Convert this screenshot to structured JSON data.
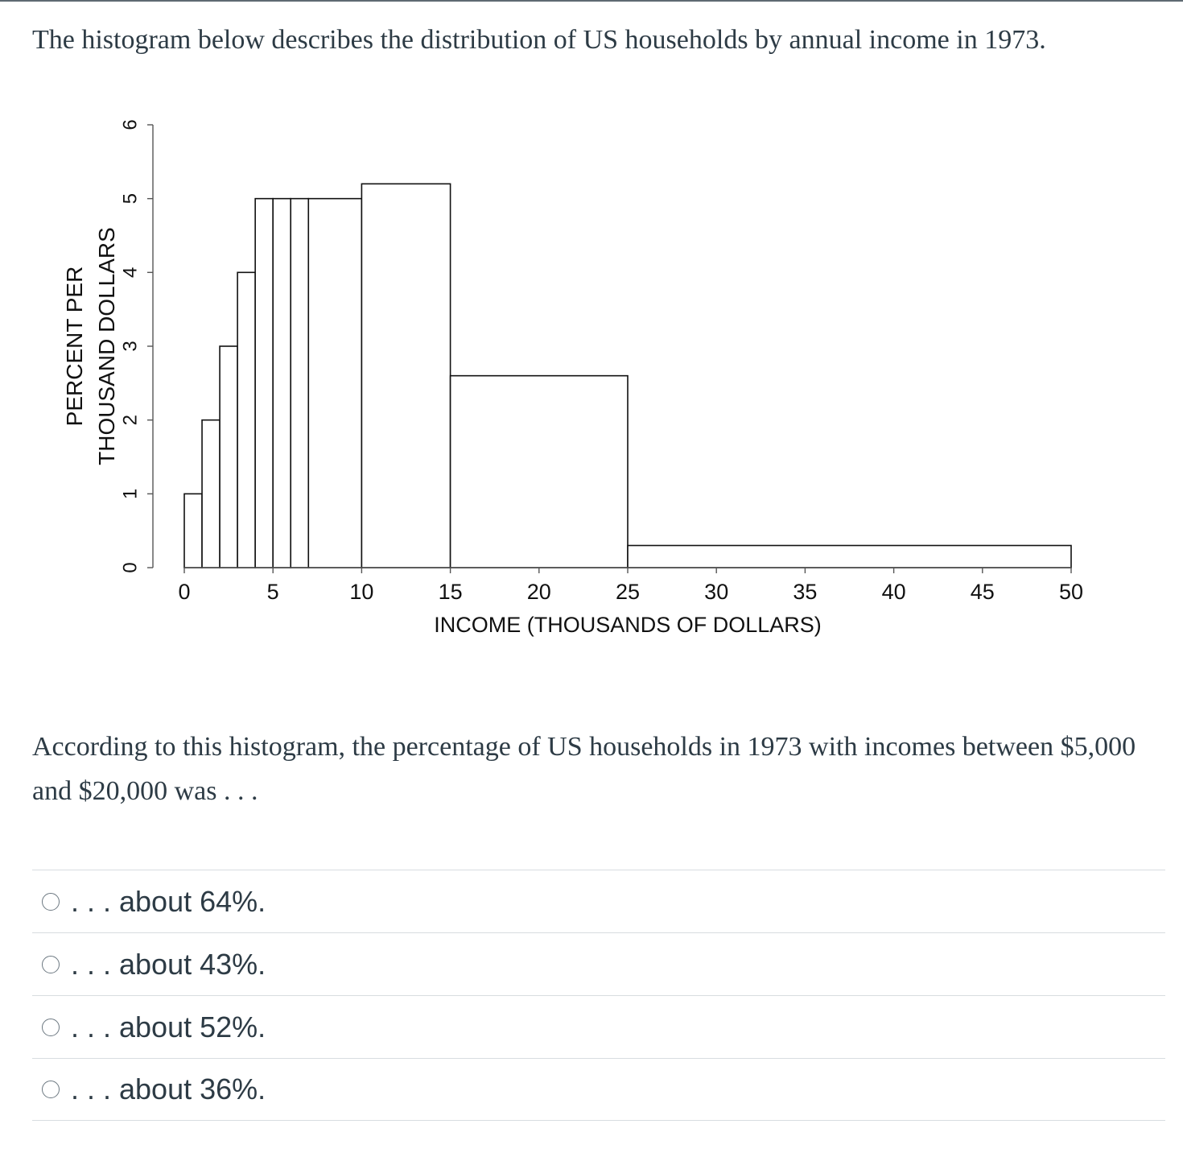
{
  "question": {
    "intro": "The histogram below describes the distribution of US households by annual income in 1973.",
    "prompt": "According to this histogram, the percentage of US households in 1973 with incomes between $5,000 and $20,000 was . . .",
    "answers": [
      ". . . about 64%.",
      ". . . about 43%.",
      ". . . about 52%.",
      ". . . about 36%."
    ]
  },
  "chart_data": {
    "type": "bar",
    "title": "",
    "xlabel": "INCOME (THOUSANDS OF DOLLARS)",
    "ylabel": [
      "PERCENT PER",
      "THOUSAND DOLLARS"
    ],
    "xlim": [
      0,
      50
    ],
    "ylim": [
      0,
      6
    ],
    "x_ticks": [
      0,
      5,
      10,
      15,
      20,
      25,
      30,
      35,
      40,
      45,
      50
    ],
    "y_ticks": [
      0,
      1,
      2,
      3,
      4,
      5,
      6
    ],
    "grid": false,
    "bins": [
      {
        "x0": 0,
        "x1": 1,
        "value": 1
      },
      {
        "x0": 1,
        "x1": 2,
        "value": 2
      },
      {
        "x0": 2,
        "x1": 3,
        "value": 3
      },
      {
        "x0": 3,
        "x1": 4,
        "value": 4
      },
      {
        "x0": 4,
        "x1": 5,
        "value": 5
      },
      {
        "x0": 5,
        "x1": 6,
        "value": 5
      },
      {
        "x0": 6,
        "x1": 7,
        "value": 5
      },
      {
        "x0": 7,
        "x1": 10,
        "value": 5
      },
      {
        "x0": 10,
        "x1": 15,
        "value": 5.2
      },
      {
        "x0": 15,
        "x1": 25,
        "value": 2.6
      },
      {
        "x0": 25,
        "x1": 50,
        "value": 0.3
      }
    ]
  }
}
